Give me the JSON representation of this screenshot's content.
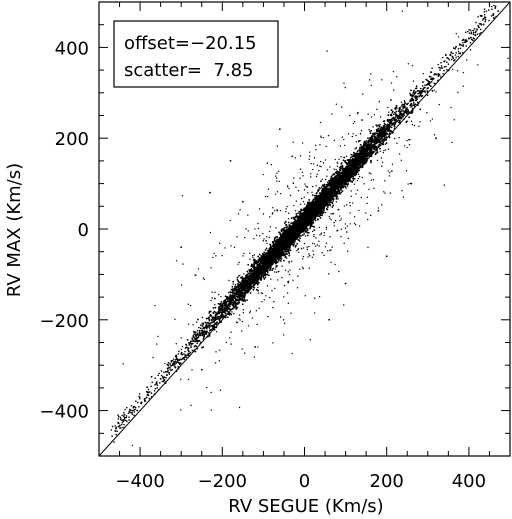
{
  "chart_data": {
    "type": "scatter",
    "title": "",
    "xlabel": "RV SEGUE (Km/s)",
    "ylabel": "RV MAX (Km/s)",
    "xlim": [
      -500,
      500
    ],
    "ylim": [
      -500,
      500
    ],
    "xticks": [
      -400,
      -200,
      0,
      200,
      400
    ],
    "yticks": [
      -400,
      -200,
      0,
      200,
      400
    ],
    "x_tick_labels": [
      "−400",
      "−200",
      "0",
      "200",
      "400"
    ],
    "y_tick_labels": [
      "−400",
      "−200",
      "0",
      "200",
      "400"
    ],
    "grid": false,
    "reference_line": {
      "slope": 1,
      "intercept": 0
    },
    "stats": {
      "offset_label": "offset=−20.15",
      "scatter_label": "scatter=  7.85",
      "offset": -20.15,
      "scatter": 7.85
    },
    "point_color": "#000000",
    "main_relation": {
      "slope": 1,
      "intercept": 20
    },
    "x_spread_main": 110,
    "sample_points": [
      [
        -460,
        -445
      ],
      [
        -420,
        -405
      ],
      [
        -380,
        -360
      ],
      [
        -350,
        -330
      ],
      [
        -320,
        -300
      ],
      [
        -300,
        -275
      ],
      [
        -260,
        -240
      ],
      [
        -220,
        -200
      ],
      [
        -200,
        -180
      ],
      [
        -160,
        -140
      ],
      [
        -120,
        -100
      ],
      [
        -80,
        -60
      ],
      [
        -40,
        -20
      ],
      [
        0,
        20
      ],
      [
        40,
        60
      ],
      [
        80,
        100
      ],
      [
        120,
        140
      ],
      [
        160,
        180
      ],
      [
        200,
        220
      ],
      [
        240,
        260
      ],
      [
        280,
        300
      ],
      [
        320,
        340
      ],
      [
        360,
        380
      ],
      [
        400,
        420
      ],
      [
        430,
        450
      ],
      [
        -230,
        80
      ],
      [
        -180,
        150
      ],
      [
        -120,
        -260
      ],
      [
        -60,
        220
      ],
      [
        60,
        -200
      ],
      [
        140,
        240
      ],
      [
        200,
        -60
      ],
      [
        260,
        100
      ],
      [
        -300,
        -40
      ],
      [
        320,
        200
      ],
      [
        -250,
        -310
      ],
      [
        100,
        -120
      ],
      [
        -30,
        160
      ],
      [
        180,
        40
      ],
      [
        -150,
        60
      ]
    ]
  }
}
